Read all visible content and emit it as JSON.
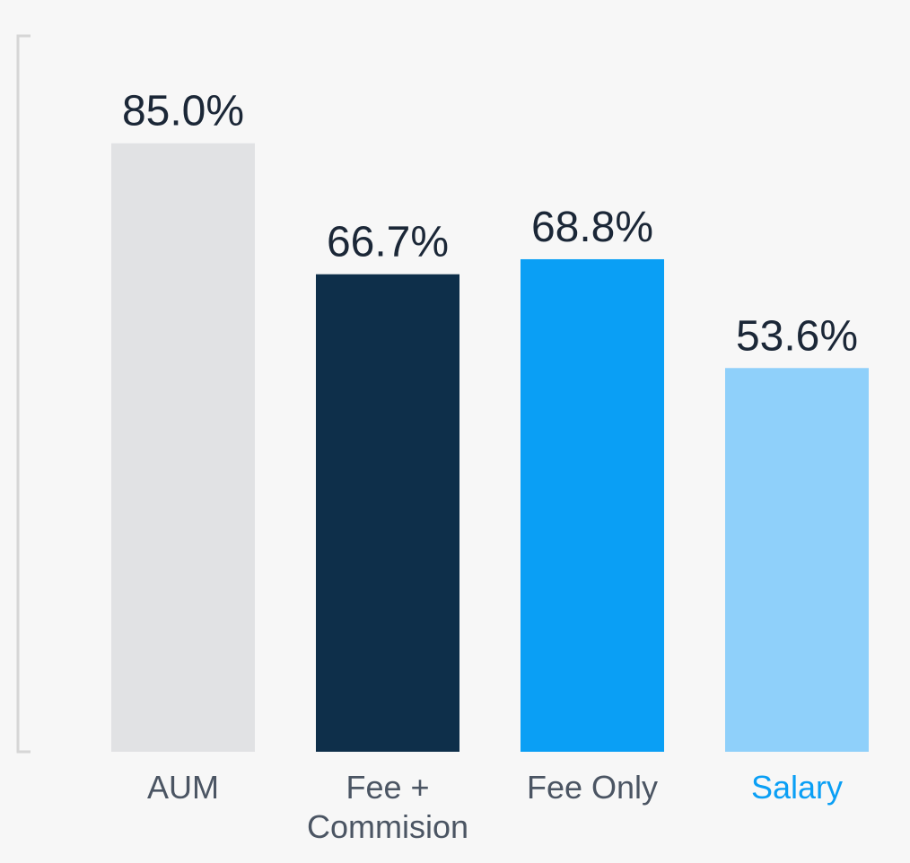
{
  "chart_data": {
    "type": "bar",
    "title": "",
    "xlabel": "",
    "ylabel": "",
    "ylim": [
      0,
      100
    ],
    "grid": false,
    "legend": "none",
    "categories": [
      {
        "lines": [
          "AUM"
        ],
        "label_color": "#4b5563"
      },
      {
        "lines": [
          "Fee +",
          "Commision"
        ],
        "label_color": "#4b5563"
      },
      {
        "lines": [
          "Fee Only"
        ],
        "label_color": "#4b5563"
      },
      {
        "lines": [
          "Salary"
        ],
        "label_color": "#0a9ff5"
      }
    ],
    "values": [
      85.0,
      66.7,
      68.8,
      53.6
    ],
    "value_labels": [
      "85.0%",
      "66.7%",
      "68.8%",
      "53.6%"
    ],
    "bar_colors": [
      "#e1e2e4",
      "#0e2f4a",
      "#0a9ff5",
      "#8fd0fa"
    ],
    "axis_color": "#d6d6d6"
  }
}
